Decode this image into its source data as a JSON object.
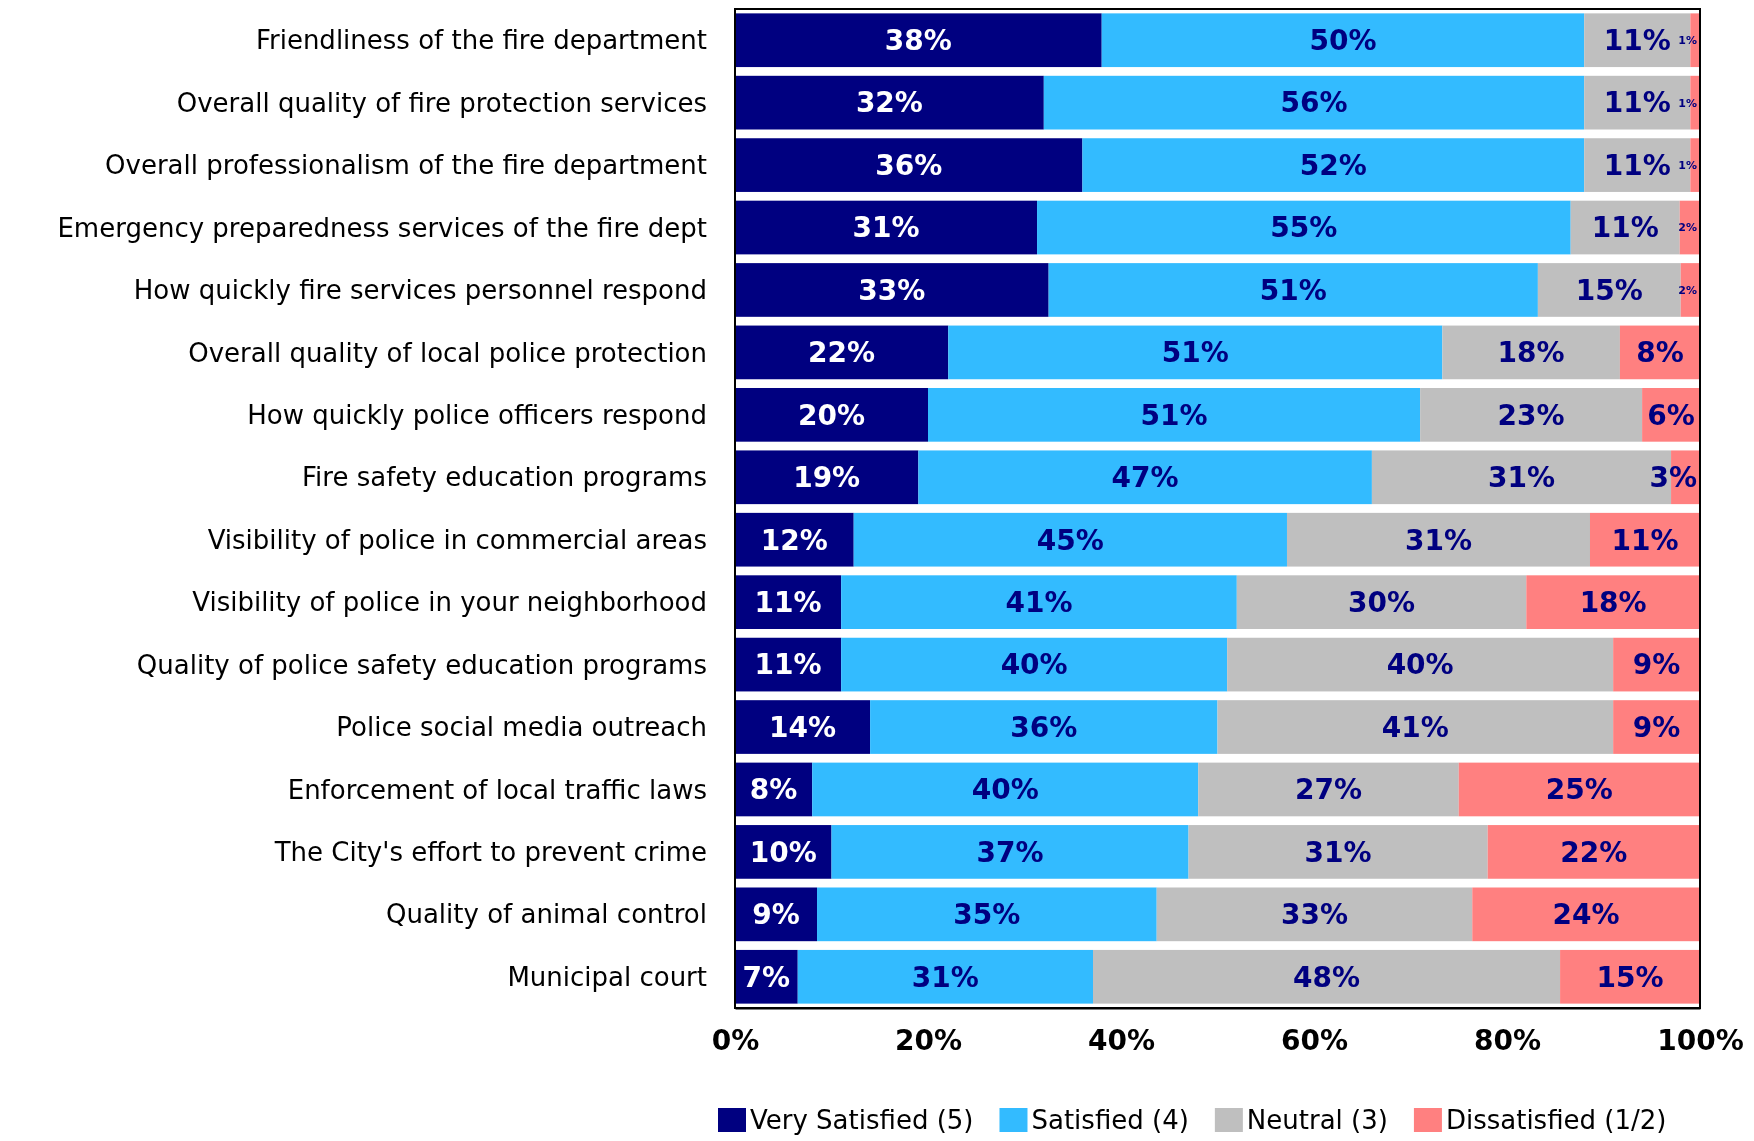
{
  "chart_data": {
    "type": "bar",
    "orientation": "horizontal",
    "stacked": true,
    "categories": [
      "Friendliness of the fire department",
      "Overall quality of fire protection services",
      "Overall professionalism of the fire department",
      "Emergency preparedness services of the fire dept",
      "How quickly fire services personnel respond",
      "Overall quality of local police protection",
      "How quickly police officers respond",
      "Fire safety education programs",
      "Visibility of police in commercial areas",
      "Visibility of police in your neighborhood",
      "Quality of police safety education programs",
      "Police social media outreach",
      "Enforcement of local traffic laws",
      "The City's effort to prevent crime",
      "Quality of animal control",
      "Municipal court"
    ],
    "series": [
      {
        "name": "Very Satisfied (5)",
        "color": "#000080",
        "values": [
          38,
          32,
          36,
          31.3,
          32.5,
          22.1,
          20,
          19,
          12.3,
          11,
          11,
          14,
          8,
          10,
          8.5,
          6.5
        ],
        "value_labels": [
          "38%",
          "32%",
          "36%",
          "31%",
          "33%",
          "22%",
          "20%",
          "19%",
          "12%",
          "11%",
          "11%",
          "14%",
          "8%",
          "10%",
          "9%",
          "7%"
        ]
      },
      {
        "name": "Satisfied (4)",
        "color": "#33bbff",
        "values": [
          50,
          56,
          52,
          55.3,
          50.7,
          51.2,
          51,
          47,
          44.9,
          41,
          40,
          36,
          40,
          37,
          35.2,
          30.6
        ],
        "value_labels": [
          "50%",
          "56%",
          "52%",
          "55%",
          "51%",
          "51%",
          "51%",
          "47%",
          "45%",
          "41%",
          "40%",
          "36%",
          "40%",
          "37%",
          "35%",
          "31%"
        ]
      },
      {
        "name": "Neutral (3)",
        "color": "#bfbfbf",
        "values": [
          11,
          11,
          11,
          11.3,
          14.8,
          18.4,
          23,
          31,
          31.4,
          30,
          40,
          41,
          27,
          31,
          32.7,
          48.4
        ],
        "value_labels": [
          "11%",
          "11%",
          "11%",
          "11%",
          "15%",
          "18%",
          "23%",
          "31%",
          "31%",
          "30%",
          "40%",
          "41%",
          "27%",
          "31%",
          "33%",
          "48%"
        ]
      },
      {
        "name": "Dissatisfied (1/2)",
        "color": "#ff8080",
        "values": [
          1,
          1,
          1,
          2.1,
          2,
          8.3,
          6,
          3,
          11.4,
          18,
          9,
          9,
          25,
          22,
          23.6,
          14.5
        ],
        "value_labels": [
          "1%",
          "1%",
          "1%",
          "2%",
          "2%",
          "8%",
          "6%",
          "3%",
          "11%",
          "18%",
          "9%",
          "9%",
          "25%",
          "22%",
          "24%",
          "15%"
        ]
      }
    ],
    "xlim": [
      0,
      100
    ],
    "xticks": [
      {
        "value": 0,
        "label": "0%"
      },
      {
        "value": 20,
        "label": "20%"
      },
      {
        "value": 40,
        "label": "40%"
      },
      {
        "value": 60,
        "label": "60%"
      },
      {
        "value": 80,
        "label": "80%"
      },
      {
        "value": 100,
        "label": "100%"
      }
    ],
    "legend": "bottom"
  }
}
